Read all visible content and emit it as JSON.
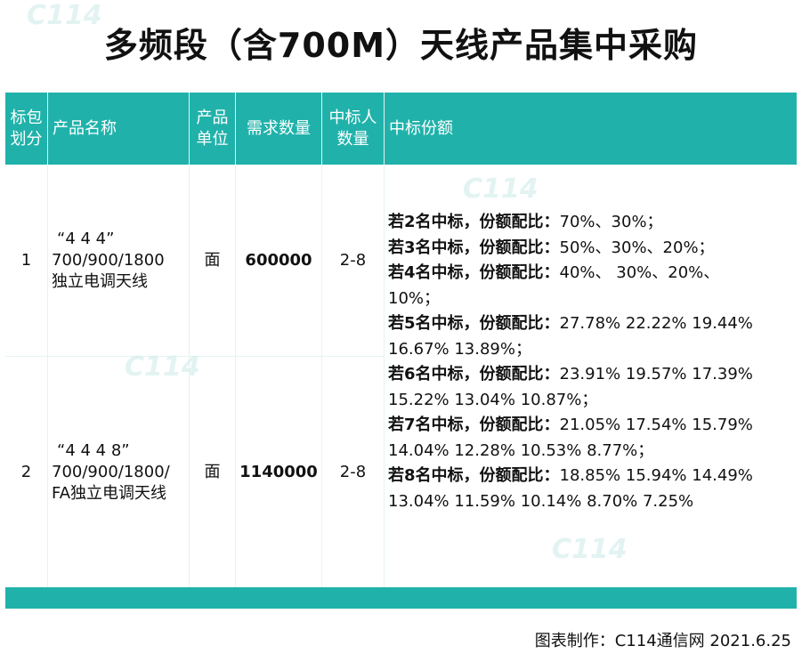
{
  "title": "多频段（含700M）天线产品集中采购",
  "headers": {
    "package": "标包划分",
    "product_name": "产品名称",
    "unit": "产品单位",
    "quantity": "需求数量",
    "winners": "中标人数量",
    "share": "中标份额"
  },
  "rows": [
    {
      "package": "1",
      "name_line1": "“4 4 4”",
      "name_line2": "700/900/1800",
      "name_line3": "独立电调天线",
      "unit": "面",
      "quantity": "600000",
      "winners": "2-8"
    },
    {
      "package": "2",
      "name_line1": "“4 4 4 8”",
      "name_line2": "700/900/1800/",
      "name_line3": "FA独立电调天线",
      "unit": "面",
      "quantity": "1140000",
      "winners": "2-8"
    }
  ],
  "shares": [
    {
      "label": "若2名中标，份额配比：",
      "l1": "70%、30%；",
      "l2": ""
    },
    {
      "label": "若3名中标，份额配比：",
      "l1": "50%、30%、20%；",
      "l2": ""
    },
    {
      "label": "若4名中标，份额配比：",
      "l1": "40%、 30%、20%、",
      "l2": "10%；"
    },
    {
      "label": "若5名中标，份额配比：",
      "l1": "27.78% 22.22% 19.44%",
      "l2": "16.67% 13.89%；"
    },
    {
      "label": "若6名中标，份额配比：",
      "l1": "23.91% 19.57% 17.39%",
      "l2": "15.22% 13.04% 10.87%；"
    },
    {
      "label": "若7名中标，份额配比：",
      "l1": "21.05% 17.54% 15.79%",
      "l2": "14.04% 12.28% 10.53% 8.77%；"
    },
    {
      "label": "若8名中标，份额配比：",
      "l1": "18.85% 15.94% 14.49%",
      "l2": "13.04% 11.59% 10.14% 8.70% 7.25%"
    }
  ],
  "source": "图表制作：C114通信网  2021.6.25",
  "colors": {
    "accent": "#20b2aa"
  }
}
